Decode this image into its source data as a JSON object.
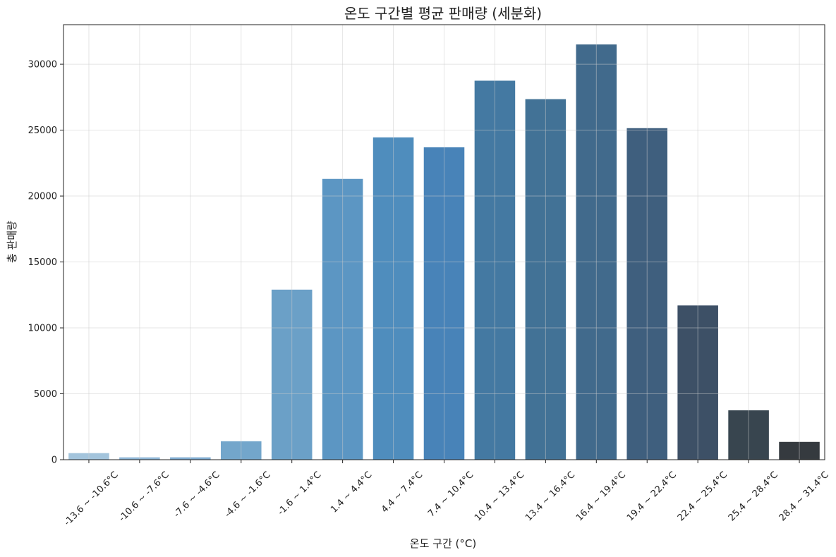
{
  "chart_data": {
    "type": "bar",
    "title": "온도 구간별 평균 판매량 (세분화)",
    "xlabel": "온도 구간 (°C)",
    "ylabel": "총 판매량",
    "ylim": [
      0,
      33000
    ],
    "yticks": [
      0,
      5000,
      10000,
      15000,
      20000,
      25000,
      30000
    ],
    "grid": true,
    "categories": [
      "-13.6 ~ -10.6°C",
      "-10.6 ~ -7.6°C",
      "-7.6 ~ -4.6°C",
      "-4.6 ~ -1.6°C",
      "-1.6 ~ 1.4°C",
      "1.4 ~ 4.4°C",
      "4.4 ~ 7.4°C",
      "7.4 ~ 10.4°C",
      "10.4 ~ 13.4°C",
      "13.4 ~ 16.4°C",
      "16.4 ~ 19.4°C",
      "19.4 ~ 22.4°C",
      "22.4 ~ 25.4°C",
      "25.4 ~ 28.4°C",
      "28.4 ~ 31.4°C"
    ],
    "values": [
      500,
      180,
      180,
      1400,
      12900,
      21300,
      24450,
      23700,
      28750,
      27350,
      31500,
      25150,
      11700,
      3750,
      1350
    ],
    "colors": [
      "#a3c4dc",
      "#8fb6d6",
      "#7fabd0",
      "#73a6cb",
      "#6ba0c7",
      "#5c96c3",
      "#4f8dbd",
      "#4883b8",
      "#4479a2",
      "#427296",
      "#416a8c",
      "#3f5f7e",
      "#3d5066",
      "#38454f",
      "#353a3f"
    ]
  }
}
